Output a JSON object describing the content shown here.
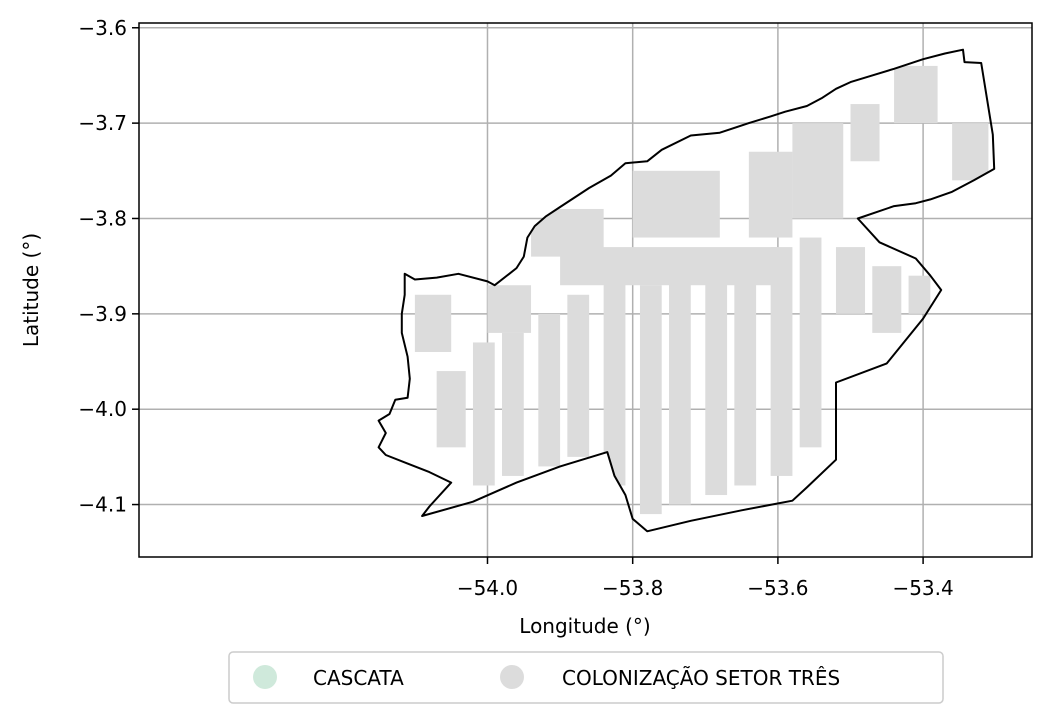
{
  "chart_data": {
    "type": "map",
    "xlabel": "Longitude (°)",
    "ylabel": "Latitude (°)",
    "xlim": [
      -54.48,
      -53.25
    ],
    "ylim": [
      -4.155,
      -3.595
    ],
    "xticks": [
      -54.0,
      -53.8,
      -53.6,
      -53.4
    ],
    "xtick_labels": [
      "−54.0",
      "−53.8",
      "−53.6",
      "−53.4"
    ],
    "yticks": [
      -3.6,
      -3.7,
      -3.8,
      -3.9,
      -4.0,
      -4.1
    ],
    "ytick_labels": [
      "−3.6",
      "−3.7",
      "−3.8",
      "−3.9",
      "−4.0",
      "−4.1"
    ],
    "grid": true,
    "legend_position": "bottom-center",
    "legend": [
      {
        "label": "CASCATA",
        "color": "#cfe9db"
      },
      {
        "label": "COLONIZAÇÃO SETOR TRÊS",
        "color": "#dcdcdc"
      }
    ],
    "boundary": [
      [
        -54.114,
        -3.858
      ],
      [
        -54.1,
        -3.864
      ],
      [
        -54.07,
        -3.862
      ],
      [
        -54.04,
        -3.858
      ],
      [
        -54.0,
        -3.866
      ],
      [
        -53.99,
        -3.87
      ],
      [
        -53.97,
        -3.858
      ],
      [
        -53.96,
        -3.852
      ],
      [
        -53.95,
        -3.84
      ],
      [
        -53.945,
        -3.82
      ],
      [
        -53.935,
        -3.808
      ],
      [
        -53.92,
        -3.798
      ],
      [
        -53.9,
        -3.788
      ],
      [
        -53.88,
        -3.778
      ],
      [
        -53.86,
        -3.768
      ],
      [
        -53.83,
        -3.755
      ],
      [
        -53.81,
        -3.742
      ],
      [
        -53.78,
        -3.74
      ],
      [
        -53.76,
        -3.728
      ],
      [
        -53.72,
        -3.713
      ],
      [
        -53.68,
        -3.71
      ],
      [
        -53.64,
        -3.7
      ],
      [
        -53.61,
        -3.693
      ],
      [
        -53.59,
        -3.688
      ],
      [
        -53.56,
        -3.682
      ],
      [
        -53.54,
        -3.674
      ],
      [
        -53.52,
        -3.664
      ],
      [
        -53.5,
        -3.657
      ],
      [
        -53.47,
        -3.65
      ],
      [
        -53.44,
        -3.643
      ],
      [
        -53.4,
        -3.633
      ],
      [
        -53.37,
        -3.627
      ],
      [
        -53.345,
        -3.623
      ],
      [
        -53.343,
        -3.636
      ],
      [
        -53.32,
        -3.637
      ],
      [
        -53.304,
        -3.712
      ],
      [
        -53.302,
        -3.748
      ],
      [
        -53.33,
        -3.76
      ],
      [
        -53.36,
        -3.772
      ],
      [
        -53.39,
        -3.78
      ],
      [
        -53.41,
        -3.784
      ],
      [
        -53.44,
        -3.787
      ],
      [
        -53.49,
        -3.8
      ],
      [
        -53.46,
        -3.825
      ],
      [
        -53.41,
        -3.842
      ],
      [
        -53.39,
        -3.86
      ],
      [
        -53.375,
        -3.875
      ],
      [
        -53.4,
        -3.905
      ],
      [
        -53.45,
        -3.952
      ],
      [
        -53.52,
        -3.972
      ],
      [
        -53.52,
        -4.053
      ],
      [
        -53.56,
        -4.082
      ],
      [
        -53.58,
        -4.096
      ],
      [
        -53.65,
        -4.106
      ],
      [
        -53.72,
        -4.117
      ],
      [
        -53.78,
        -4.128
      ],
      [
        -53.8,
        -4.115
      ],
      [
        -53.81,
        -4.09
      ],
      [
        -53.825,
        -4.07
      ],
      [
        -53.835,
        -4.045
      ],
      [
        -53.9,
        -4.06
      ],
      [
        -53.96,
        -4.077
      ],
      [
        -54.02,
        -4.097
      ],
      [
        -54.09,
        -4.112
      ],
      [
        -54.08,
        -4.102
      ],
      [
        -54.05,
        -4.077
      ],
      [
        -54.08,
        -4.066
      ],
      [
        -54.11,
        -4.057
      ],
      [
        -54.14,
        -4.048
      ],
      [
        -54.15,
        -4.04
      ],
      [
        -54.14,
        -4.025
      ],
      [
        -54.15,
        -4.012
      ],
      [
        -54.135,
        -4.005
      ],
      [
        -54.127,
        -3.99
      ],
      [
        -54.11,
        -3.988
      ],
      [
        -54.107,
        -3.968
      ],
      [
        -54.11,
        -3.945
      ],
      [
        -54.118,
        -3.92
      ],
      [
        -54.118,
        -3.9
      ],
      [
        -54.114,
        -3.88
      ]
    ],
    "parcels": [
      {
        "name": "COLONIZAÇÃO SETOR TRÊS",
        "lon": [
          -54.1,
          -54.05
        ],
        "lat": [
          -3.94,
          -3.88
        ]
      },
      {
        "name": "COLONIZAÇÃO SETOR TRÊS",
        "lon": [
          -54.07,
          -54.03
        ],
        "lat": [
          -4.04,
          -3.96
        ]
      },
      {
        "name": "COLONIZAÇÃO SETOR TRÊS",
        "lon": [
          -54.02,
          -53.99
        ],
        "lat": [
          -4.08,
          -3.93
        ]
      },
      {
        "name": "COLONIZAÇÃO SETOR TRÊS",
        "lon": [
          -53.98,
          -53.95
        ],
        "lat": [
          -4.07,
          -3.92
        ]
      },
      {
        "name": "COLONIZAÇÃO SETOR TRÊS",
        "lon": [
          -53.93,
          -53.9
        ],
        "lat": [
          -4.06,
          -3.9
        ]
      },
      {
        "name": "COLONIZAÇÃO SETOR TRÊS",
        "lon": [
          -53.89,
          -53.86
        ],
        "lat": [
          -4.05,
          -3.88
        ]
      },
      {
        "name": "COLONIZAÇÃO SETOR TRÊS",
        "lon": [
          -53.84,
          -53.81
        ],
        "lat": [
          -4.08,
          -3.86
        ]
      },
      {
        "name": "COLONIZAÇÃO SETOR TRÊS",
        "lon": [
          -53.79,
          -53.76
        ],
        "lat": [
          -4.11,
          -3.87
        ]
      },
      {
        "name": "COLONIZAÇÃO SETOR TRÊS",
        "lon": [
          -53.75,
          -53.72
        ],
        "lat": [
          -4.1,
          -3.86
        ]
      },
      {
        "name": "COLONIZAÇÃO SETOR TRÊS",
        "lon": [
          -53.7,
          -53.67
        ],
        "lat": [
          -4.09,
          -3.85
        ]
      },
      {
        "name": "COLONIZAÇÃO SETOR TRÊS",
        "lon": [
          -53.66,
          -53.63
        ],
        "lat": [
          -4.08,
          -3.84
        ]
      },
      {
        "name": "COLONIZAÇÃO SETOR TRÊS",
        "lon": [
          -53.61,
          -53.58
        ],
        "lat": [
          -4.07,
          -3.83
        ]
      },
      {
        "name": "COLONIZAÇÃO SETOR TRÊS",
        "lon": [
          -53.57,
          -53.54
        ],
        "lat": [
          -4.04,
          -3.82
        ]
      },
      {
        "name": "COLONIZAÇÃO SETOR TRÊS",
        "lon": [
          -53.9,
          -53.6
        ],
        "lat": [
          -3.87,
          -3.83
        ]
      },
      {
        "name": "COLONIZAÇÃO SETOR TRÊS",
        "lon": [
          -53.8,
          -53.68
        ],
        "lat": [
          -3.82,
          -3.75
        ]
      },
      {
        "name": "COLONIZAÇÃO SETOR TRÊS",
        "lon": [
          -53.64,
          -53.58
        ],
        "lat": [
          -3.82,
          -3.73
        ]
      },
      {
        "name": "COLONIZAÇÃO SETOR TRÊS",
        "lon": [
          -53.58,
          -53.51
        ],
        "lat": [
          -3.8,
          -3.7
        ]
      },
      {
        "name": "COLONIZAÇÃO SETOR TRÊS",
        "lon": [
          -53.5,
          -53.46
        ],
        "lat": [
          -3.74,
          -3.68
        ]
      },
      {
        "name": "COLONIZAÇÃO SETOR TRÊS",
        "lon": [
          -53.44,
          -53.38
        ],
        "lat": [
          -3.7,
          -3.64
        ]
      },
      {
        "name": "COLONIZAÇÃO SETOR TRÊS",
        "lon": [
          -53.36,
          -53.31
        ],
        "lat": [
          -3.76,
          -3.7
        ]
      },
      {
        "name": "COLONIZAÇÃO SETOR TRÊS",
        "lon": [
          -53.52,
          -53.48
        ],
        "lat": [
          -3.9,
          -3.83
        ]
      },
      {
        "name": "COLONIZAÇÃO SETOR TRÊS",
        "lon": [
          -53.47,
          -53.43
        ],
        "lat": [
          -3.92,
          -3.85
        ]
      },
      {
        "name": "COLONIZAÇÃO SETOR TRÊS",
        "lon": [
          -53.42,
          -53.39
        ],
        "lat": [
          -3.9,
          -3.86
        ]
      },
      {
        "name": "COLONIZAÇÃO SETOR TRÊS",
        "lon": [
          -54.0,
          -53.94
        ],
        "lat": [
          -3.92,
          -3.87
        ]
      },
      {
        "name": "COLONIZAÇÃO SETOR TRÊS",
        "lon": [
          -53.94,
          -53.84
        ],
        "lat": [
          -3.84,
          -3.79
        ]
      }
    ]
  }
}
